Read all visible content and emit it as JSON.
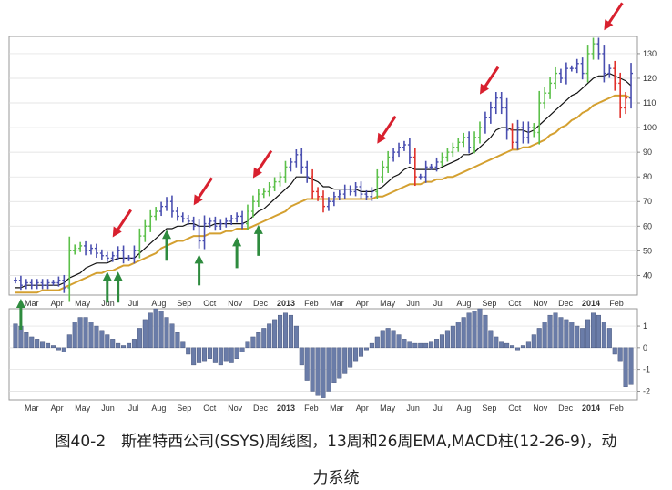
{
  "caption": {
    "line1": "图40-2　斯崔特西公司(SSYS)周线图，13周和26周EMA,MACD柱(12-26-9)，动",
    "line2": "力系统"
  },
  "colors": {
    "bar_up": "#5cc04a",
    "bar_down": "#e0302a",
    "bar_neutral": "#4a4fb0",
    "ema13": "#111111",
    "ema26": "#d4a030",
    "hist": "#6a7ca8",
    "arrow_red": "#d8202e",
    "arrow_green": "#2e8b3e",
    "grid": "#dddddd",
    "frame": "#999999"
  },
  "chart_data": [
    {
      "type": "bar",
      "subtype": "ohlc",
      "panel": "price",
      "x_ticks": [
        "Mar",
        "Apr",
        "May",
        "Jun",
        "Jul",
        "Aug",
        "Sep",
        "Oct",
        "Nov",
        "Dec",
        "2013",
        "Feb",
        "Mar",
        "Apr",
        "May",
        "Jun",
        "Jul",
        "Aug",
        "Sep",
        "Oct",
        "Nov",
        "Dec",
        "2014",
        "Feb"
      ],
      "y_ticks": [
        40,
        50,
        60,
        70,
        80,
        90,
        100,
        110,
        120,
        130
      ],
      "ylim": [
        32,
        137
      ],
      "series": [
        {
          "name": "bars",
          "color_by": "impulse",
          "close": [
            38,
            36,
            37,
            36,
            37,
            36,
            37,
            37,
            38,
            35,
            50,
            51,
            52,
            50,
            51,
            49,
            48,
            47,
            48,
            50,
            47,
            47,
            50,
            56,
            60,
            64,
            66,
            68,
            70,
            66,
            64,
            63,
            62,
            60,
            54,
            61,
            62,
            60,
            61,
            62,
            63,
            64,
            61,
            66,
            70,
            73,
            74,
            76,
            78,
            80,
            84,
            86,
            89,
            84,
            80,
            74,
            72,
            68,
            70,
            72,
            73,
            75,
            74,
            76,
            73,
            72,
            74,
            80,
            84,
            88,
            90,
            92,
            93,
            88,
            80,
            80,
            84,
            84,
            86,
            88,
            90,
            92,
            94,
            96,
            92,
            96,
            100,
            104,
            108,
            112,
            108,
            99,
            94,
            100,
            96,
            100,
            98,
            110,
            114,
            118,
            122,
            120,
            124,
            124,
            126,
            122,
            130,
            134,
            130,
            122,
            124,
            118,
            108,
            112,
            122
          ]
        },
        {
          "name": "13周EMA",
          "values": [
            35,
            35,
            36,
            36,
            36,
            36,
            36,
            36,
            36,
            37,
            39,
            40,
            41,
            43,
            44,
            45,
            45,
            45,
            46,
            47,
            47,
            47,
            47,
            49,
            51,
            53,
            55,
            57,
            59,
            59,
            60,
            60,
            61,
            61,
            60,
            60,
            60,
            61,
            61,
            61,
            61,
            61,
            61,
            62,
            64,
            66,
            67,
            69,
            71,
            73,
            75,
            77,
            80,
            80,
            80,
            79,
            78,
            76,
            76,
            75,
            75,
            75,
            75,
            75,
            74,
            74,
            74,
            75,
            76,
            78,
            80,
            81,
            83,
            84,
            83,
            83,
            83,
            83,
            83,
            84,
            85,
            86,
            87,
            89,
            89,
            90,
            92,
            94,
            96,
            99,
            100,
            100,
            99,
            99,
            99,
            98,
            99,
            101,
            103,
            105,
            107,
            109,
            111,
            113,
            114,
            116,
            118,
            120,
            121,
            121,
            122,
            121,
            120,
            119,
            117
          ]
        },
        {
          "name": "26周EMA",
          "values": [
            33,
            33,
            33,
            33,
            33,
            34,
            34,
            34,
            34,
            35,
            36,
            37,
            38,
            39,
            40,
            41,
            41,
            42,
            42,
            43,
            44,
            44,
            45,
            46,
            47,
            48,
            49,
            51,
            52,
            53,
            54,
            54,
            55,
            56,
            56,
            56,
            57,
            57,
            57,
            58,
            58,
            59,
            59,
            59,
            60,
            61,
            62,
            63,
            64,
            65,
            66,
            68,
            69,
            70,
            71,
            71,
            71,
            71,
            71,
            71,
            71,
            71,
            71,
            71,
            71,
            71,
            71,
            72,
            72,
            73,
            74,
            75,
            76,
            77,
            77,
            77,
            78,
            78,
            79,
            79,
            80,
            80,
            81,
            82,
            83,
            84,
            85,
            86,
            87,
            88,
            89,
            90,
            91,
            91,
            92,
            92,
            93,
            94,
            95,
            97,
            98,
            100,
            101,
            103,
            104,
            106,
            107,
            109,
            110,
            111,
            112,
            113,
            113,
            113,
            112
          ]
        }
      ]
    },
    {
      "type": "bar",
      "panel": "macd_histogram",
      "name": "MACD柱(12-26-9)",
      "x_ticks": [
        "Mar",
        "Apr",
        "May",
        "Jun",
        "Jul",
        "Aug",
        "Sep",
        "Oct",
        "Nov",
        "Dec",
        "2013",
        "Feb",
        "Mar",
        "Apr",
        "May",
        "Jun",
        "Jul",
        "Aug",
        "Sep",
        "Oct",
        "Nov",
        "Dec",
        "2014",
        "Feb"
      ],
      "y_ticks": [
        1,
        0,
        -1,
        -2
      ],
      "ylim": [
        -2.4,
        1.8
      ],
      "values": [
        1.1,
        1.0,
        0.7,
        0.5,
        0.4,
        0.3,
        0.2,
        0.1,
        -0.1,
        -0.2,
        0.6,
        1.2,
        1.4,
        1.4,
        1.2,
        1.0,
        0.8,
        0.6,
        0.4,
        0.2,
        0.1,
        0.2,
        0.4,
        0.9,
        1.3,
        1.6,
        1.8,
        1.7,
        1.4,
        1.1,
        0.7,
        0.3,
        -0.3,
        -0.8,
        -0.7,
        -0.6,
        -0.5,
        -0.7,
        -0.8,
        -0.6,
        -0.7,
        -0.5,
        -0.2,
        0.3,
        0.5,
        0.7,
        0.9,
        1.1,
        1.3,
        1.5,
        1.6,
        1.5,
        1.0,
        -0.8,
        -1.5,
        -2.0,
        -2.2,
        -2.3,
        -2.0,
        -1.6,
        -1.4,
        -1.2,
        -0.9,
        -0.6,
        -0.4,
        -0.1,
        0.2,
        0.5,
        0.8,
        0.9,
        0.8,
        0.6,
        0.4,
        0.3,
        0.2,
        0.2,
        0.2,
        0.3,
        0.4,
        0.6,
        0.8,
        1.0,
        1.2,
        1.4,
        1.6,
        1.7,
        1.8,
        1.5,
        0.8,
        0.5,
        0.3,
        0.2,
        0.1,
        -0.1,
        0.1,
        0.3,
        0.6,
        0.9,
        1.2,
        1.5,
        1.6,
        1.4,
        1.3,
        1.2,
        1.0,
        0.9,
        1.3,
        1.6,
        1.5,
        1.2,
        0.9,
        -0.3,
        -0.6,
        -1.8,
        -1.7
      ]
    }
  ],
  "signals": {
    "red_arrows_at_bar": [
      44,
      78,
      104,
      161,
      205,
      261
    ],
    "green_arrows_at_bar": [
      2,
      40,
      46,
      67,
      81,
      98,
      108
    ]
  }
}
